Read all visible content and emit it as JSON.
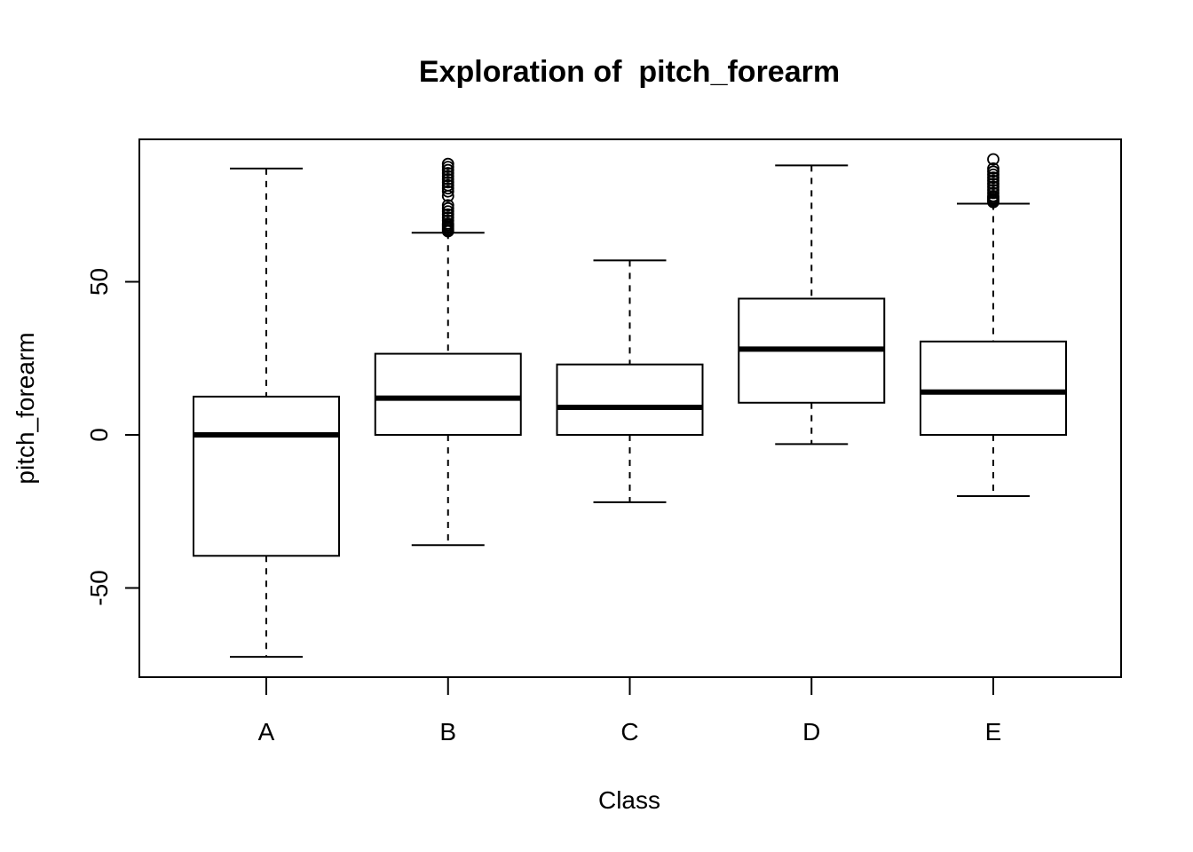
{
  "chart_data": {
    "type": "boxplot",
    "title": "Exploration of  pitch_forearm",
    "xlabel": "Class",
    "ylabel": "pitch_forearm",
    "ylim": [
      -79,
      96
    ],
    "yticks": [
      -50,
      0,
      50
    ],
    "grid": false,
    "categories": [
      "A",
      "B",
      "C",
      "D",
      "E"
    ],
    "boxes": [
      {
        "category": "A",
        "whisker_low": -72.5,
        "q1": -39.5,
        "median": 0,
        "q3": 12.5,
        "whisker_high": 87.0,
        "outliers": []
      },
      {
        "category": "B",
        "whisker_low": -36.0,
        "q1": 0,
        "median": 12.0,
        "q3": 26.5,
        "whisker_high": 66.0,
        "outliers": [
          66.5,
          67.0,
          67.5,
          68.0,
          68.5,
          69.0,
          70.0,
          71.0,
          72.0,
          73.0,
          74.0,
          75.0,
          78.0,
          79.5,
          80.5,
          81.5,
          82.5,
          83.5,
          84.5,
          85.5,
          86.5,
          87.5,
          88.5
        ]
      },
      {
        "category": "C",
        "whisker_low": -22.0,
        "q1": 0,
        "median": 9.0,
        "q3": 23.0,
        "whisker_high": 57.0,
        "outliers": []
      },
      {
        "category": "D",
        "whisker_low": -3.0,
        "q1": 10.5,
        "median": 28.0,
        "q3": 44.5,
        "whisker_high": 88.0,
        "outliers": []
      },
      {
        "category": "E",
        "whisker_low": -20.0,
        "q1": 0,
        "median": 14.0,
        "q3": 30.5,
        "whisker_high": 75.5,
        "outliers": [
          76.0,
          76.5,
          77.0,
          77.5,
          78.0,
          79.0,
          80.0,
          81.0,
          82.0,
          83.0,
          84.0,
          85.0,
          86.0,
          87.0,
          90.0
        ]
      }
    ]
  }
}
